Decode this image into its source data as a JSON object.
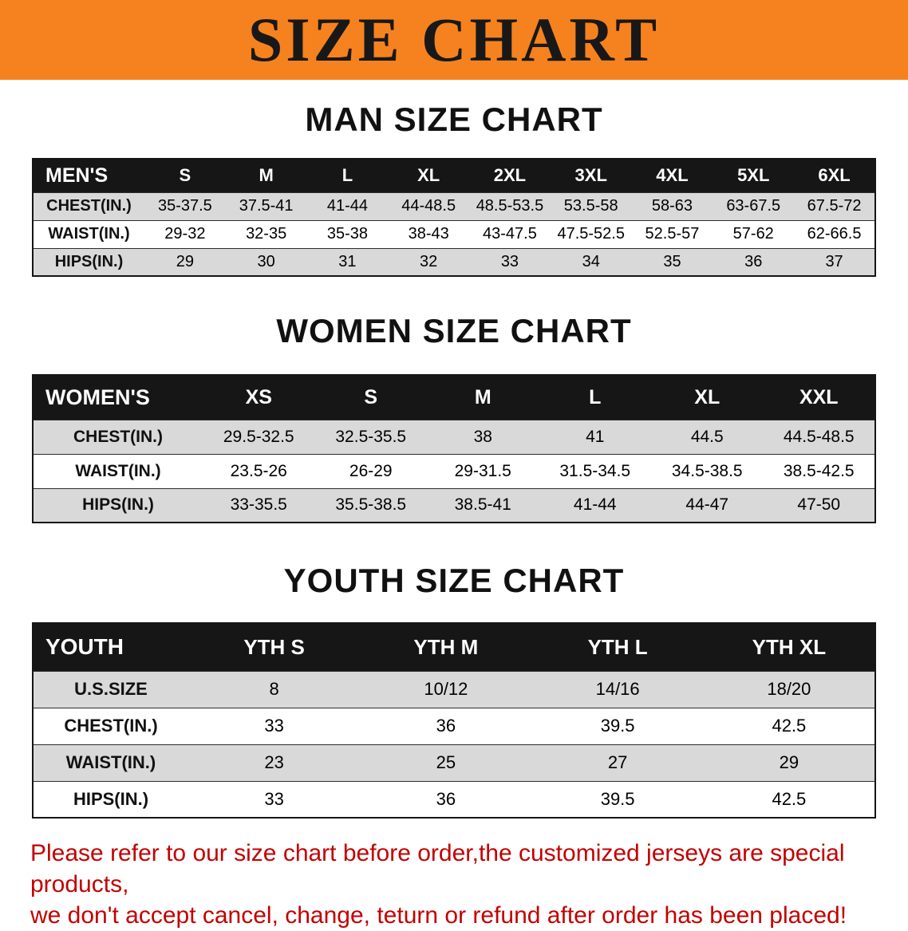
{
  "banner": {
    "title": "SIZE CHART"
  },
  "colors": {
    "banner_bg": "#f5821f",
    "banner_text": "#181818",
    "table_header_bg": "#161616",
    "table_header_text": "#ffffff",
    "row_alt_bg": "#d9d9d9",
    "disclaimer_text": "#c30000"
  },
  "men_chart": {
    "heading": "MAN SIZE CHART",
    "table": {
      "header": [
        "MEN'S",
        "S",
        "M",
        "L",
        "XL",
        "2XL",
        "3XL",
        "4XL",
        "5XL",
        "6XL"
      ],
      "rows": [
        {
          "label": "CHEST(IN.)",
          "values": [
            "35-37.5",
            "37.5-41",
            "41-44",
            "44-48.5",
            "48.5-53.5",
            "53.5-58",
            "58-63",
            "63-67.5",
            "67.5-72"
          ]
        },
        {
          "label": "WAIST(IN.)",
          "values": [
            "29-32",
            "32-35",
            "35-38",
            "38-43",
            "43-47.5",
            "47.5-52.5",
            "52.5-57",
            "57-62",
            "62-66.5"
          ]
        },
        {
          "label": "HIPS(IN.)",
          "values": [
            "29",
            "30",
            "31",
            "32",
            "33",
            "34",
            "35",
            "36",
            "37"
          ]
        }
      ]
    }
  },
  "women_chart": {
    "heading": "WOMEN SIZE CHART",
    "table": {
      "header": [
        "WOMEN'S",
        "XS",
        "S",
        "M",
        "L",
        "XL",
        "XXL"
      ],
      "rows": [
        {
          "label": "CHEST(IN.)",
          "values": [
            "29.5-32.5",
            "32.5-35.5",
            "38",
            "41",
            "44.5",
            "44.5-48.5"
          ]
        },
        {
          "label": "WAIST(IN.)",
          "values": [
            "23.5-26",
            "26-29",
            "29-31.5",
            "31.5-34.5",
            "34.5-38.5",
            "38.5-42.5"
          ]
        },
        {
          "label": "HIPS(IN.)",
          "values": [
            "33-35.5",
            "35.5-38.5",
            "38.5-41",
            "41-44",
            "44-47",
            "47-50"
          ]
        }
      ]
    }
  },
  "youth_chart": {
    "heading": "YOUTH SIZE CHART",
    "table": {
      "header": [
        "YOUTH",
        "YTH S",
        "YTH M",
        "YTH L",
        "YTH XL"
      ],
      "rows": [
        {
          "label": "U.S.SIZE",
          "values": [
            "8",
            "10/12",
            "14/16",
            "18/20"
          ]
        },
        {
          "label": "CHEST(IN.)",
          "values": [
            "33",
            "36",
            "39.5",
            "42.5"
          ]
        },
        {
          "label": "WAIST(IN.)",
          "values": [
            "23",
            "25",
            "27",
            "29"
          ]
        },
        {
          "label": "HIPS(IN.)",
          "values": [
            "33",
            "36",
            "39.5",
            "42.5"
          ]
        }
      ]
    }
  },
  "disclaimer": {
    "line1": "Please refer to our size chart before order,the customized jerseys are special products,",
    "line2": "we don't accept cancel, change, teturn or refund after order has been placed!"
  }
}
